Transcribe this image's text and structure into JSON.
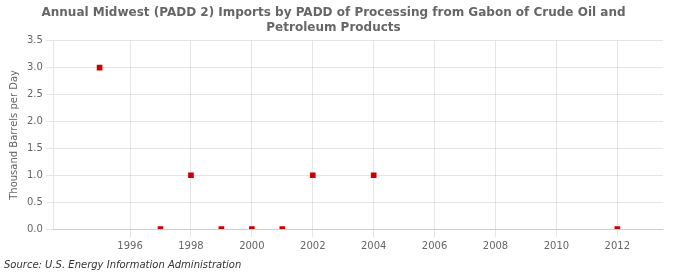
{
  "chart_data": {
    "type": "scatter",
    "title": "Annual Midwest (PADD 2) Imports by PADD of Processing from Gabon of Crude Oil and\nPetroleum Products",
    "ylabel": "Thousand Barrels per Day",
    "annotation": "Source: U.S. Energy Information Administration",
    "x": [
      1995,
      1997,
      1998,
      1999,
      2000,
      2001,
      2002,
      2004,
      2012
    ],
    "values": [
      3.0,
      0.0,
      1.0,
      0.0,
      0.0,
      0.0,
      1.0,
      1.0,
      0.0
    ],
    "color": "#cc0000",
    "marker": "square",
    "xlim": [
      1993.5,
      2013.5
    ],
    "xticks": [
      1996,
      1998,
      2000,
      2002,
      2004,
      2006,
      2008,
      2010,
      2012
    ],
    "ylim": [
      0.0,
      3.5
    ],
    "yticks": [
      {
        "value": 0.0,
        "label": "0.0"
      },
      0.5,
      {
        "value": 1.0,
        "label": "1.0"
      },
      1.5,
      {
        "value": 2.0,
        "label": "2.0"
      },
      2.5,
      {
        "value": 3.0,
        "label": "3.0"
      },
      3.5
    ],
    "grid": true
  }
}
